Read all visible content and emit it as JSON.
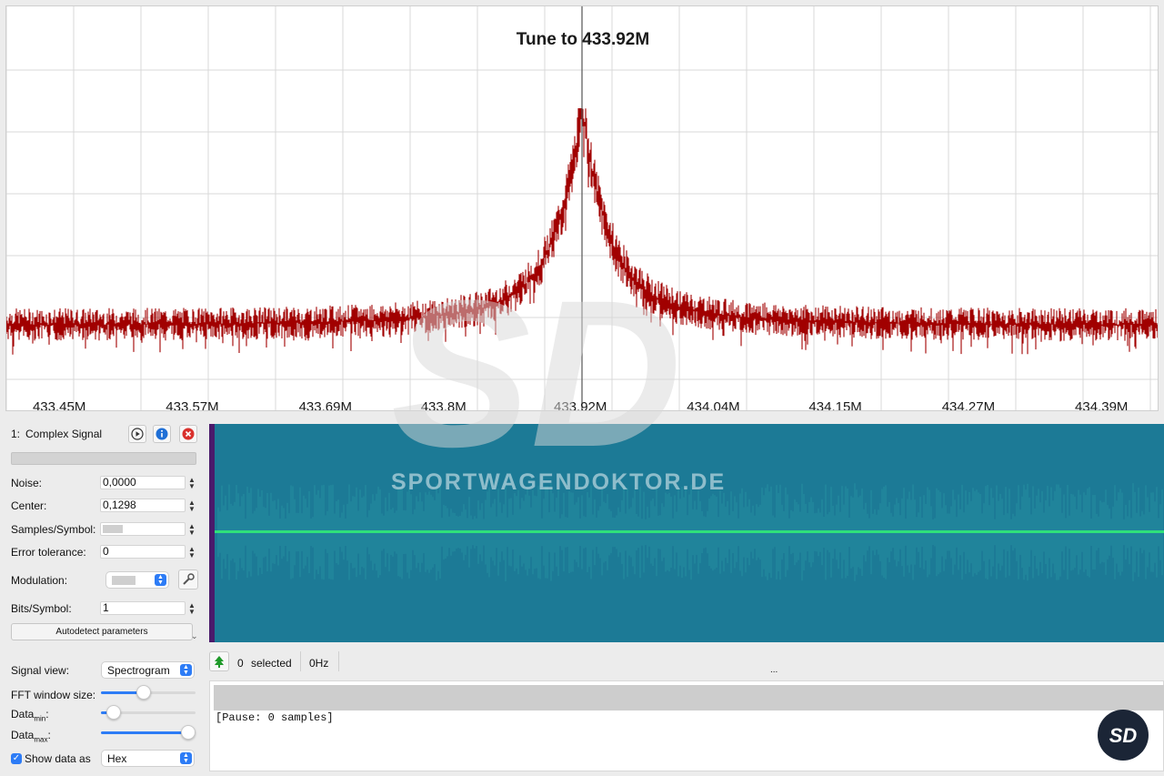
{
  "spectrum": {
    "tune_label": "Tune to 433.92M",
    "axis_ticks": [
      "433.45M",
      "433.57M",
      "433.69M",
      "433.8M",
      "433.92M",
      "434.04M",
      "434.15M",
      "434.27M",
      "434.39M"
    ],
    "axis_tick_values_mhz": [
      433.45,
      433.57,
      433.69,
      433.8,
      433.92,
      434.04,
      434.15,
      434.27,
      434.39
    ],
    "center_mhz": 433.92,
    "line_color": "#a10000"
  },
  "signal": {
    "index": "1:",
    "name": "Complex Signal"
  },
  "params": {
    "noise_label": "Noise:",
    "noise_value": "0,0000",
    "center_label": "Center:",
    "center_value": "0,1298",
    "samples_label": "Samples/Symbol:",
    "error_label": "Error tolerance:",
    "error_value": "0",
    "modulation_label": "Modulation:",
    "bits_label": "Bits/Symbol:",
    "bits_value": "1",
    "autodetect_label": "Autodetect parameters"
  },
  "view": {
    "signal_view_label": "Signal view:",
    "signal_view_value": "Spectrogram",
    "fft_label": "FFT window size:",
    "data_label": "Data",
    "min_sub": "min",
    "max_sub": "max",
    "colon": ":",
    "fft_level": 0.45,
    "data_min_level": 0.13,
    "data_max_level": 0.92,
    "show_data_label": "Show data as",
    "show_data_checked": true,
    "show_data_value": "Hex"
  },
  "status": {
    "selected_count": "0",
    "selected_label": "selected",
    "frequency": "0Hz",
    "splitter": "..."
  },
  "output": {
    "pause_text": "[Pause: 0 samples]"
  },
  "watermark": {
    "text": "SPORTWAGENDOKTOR.DE",
    "logo_text": "SD"
  },
  "colors": {
    "accent": "#2d7cf6",
    "spectrogram_bg": "#1c7a96",
    "spectrogram_line": "#2fe07a"
  }
}
